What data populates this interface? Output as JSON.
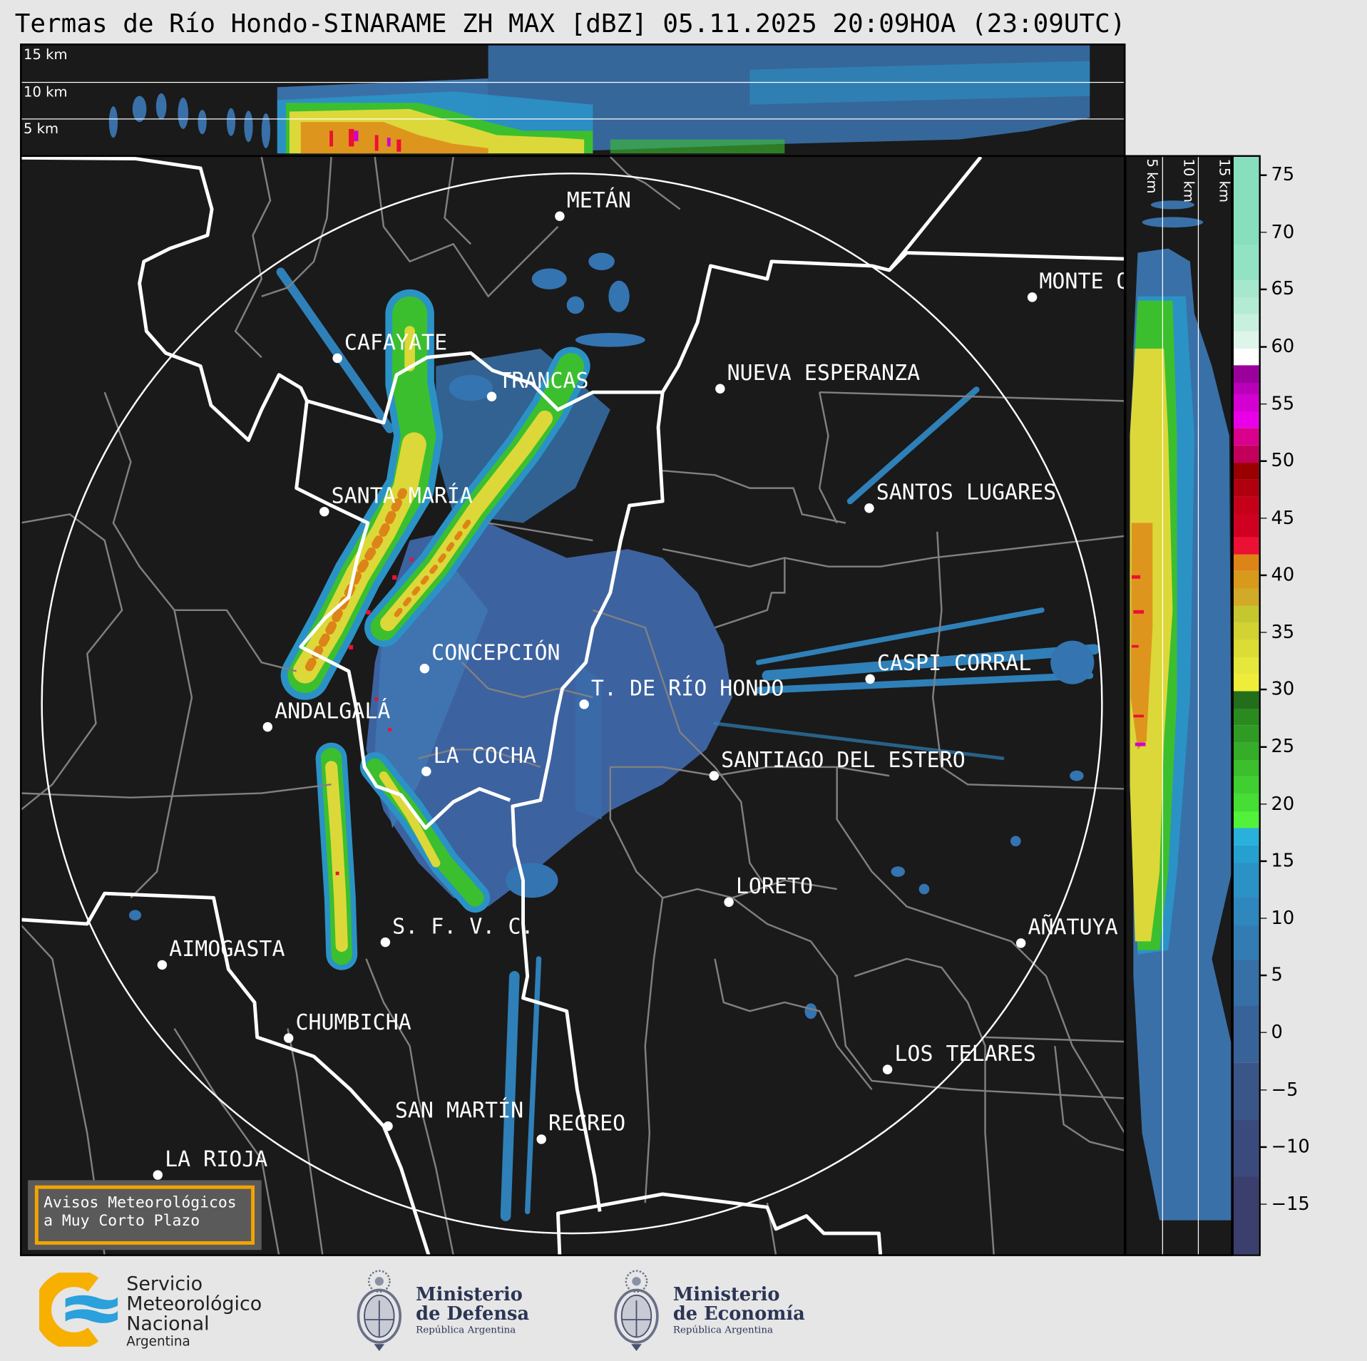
{
  "title": "Termas de Río Hondo-SINARAME ZH MAX [dBZ] 05.11.2025 20:09HOA (23:09UTC)",
  "top_profile": {
    "height_labels": [
      "15 km",
      "10 km",
      "5 km"
    ]
  },
  "side_profile": {
    "height_labels": [
      "5 km",
      "10 km",
      "15 km"
    ]
  },
  "cities": [
    {
      "name": "METÁN"
    },
    {
      "name": "MONTE Q"
    },
    {
      "name": "CAFAYATE"
    },
    {
      "name": "TRANCAS"
    },
    {
      "name": "NUEVA ESPERANZA"
    },
    {
      "name": "SANTA MARÍA"
    },
    {
      "name": "SANTOS LUGARES"
    },
    {
      "name": "CONCEPCIÓN"
    },
    {
      "name": "CASPI CORRAL"
    },
    {
      "name": "T. DE RÍO HONDO"
    },
    {
      "name": "ANDALGALÁ"
    },
    {
      "name": "LA COCHA"
    },
    {
      "name": "SANTIAGO DEL ESTERO"
    },
    {
      "name": "LORETO"
    },
    {
      "name": "S. F. V. C."
    },
    {
      "name": "AÑATUYA"
    },
    {
      "name": "AIMOGASTA"
    },
    {
      "name": "CHUMBICHA"
    },
    {
      "name": "LOS TELARES"
    },
    {
      "name": "SAN MARTÍN"
    },
    {
      "name": "RECREO"
    },
    {
      "name": "LA RIOJA"
    }
  ],
  "avisos_box": {
    "line1": "Avisos Meteorológicos",
    "line2": "a Muy Corto Plazo",
    "border_color": "#f5a300"
  },
  "colorbar": {
    "unit": "dBZ",
    "range": [
      -19.6,
      76.7
    ],
    "ticks": [
      "75",
      "70",
      "65",
      "60",
      "55",
      "50",
      "45",
      "40",
      "35",
      "30",
      "25",
      "20",
      "15",
      "10",
      "5",
      "0",
      "−5",
      "−10",
      "−15"
    ],
    "tick_values": [
      75,
      70,
      65,
      60,
      55,
      50,
      45,
      40,
      35,
      30,
      25,
      20,
      15,
      10,
      5,
      0,
      -5,
      -10,
      -15
    ],
    "bands": [
      [
        -19.6,
        "#3b3f6e"
      ],
      [
        -12.5,
        "#3b4a7c"
      ],
      [
        -7.5,
        "#3a5588"
      ],
      [
        -2.5,
        "#386398"
      ],
      [
        2.5,
        "#3670a6"
      ],
      [
        6.5,
        "#337cb3"
      ],
      [
        9.5,
        "#2f87bd"
      ],
      [
        12,
        "#2b92c6"
      ],
      [
        15,
        "#26a0d1"
      ],
      [
        16.5,
        "#29b0dc"
      ],
      [
        18,
        "#52f23a"
      ],
      [
        19.5,
        "#46dd34"
      ],
      [
        21,
        "#40cf30"
      ],
      [
        22.5,
        "#3bbf2d"
      ],
      [
        24,
        "#35ad28"
      ],
      [
        25.5,
        "#2f9b24"
      ],
      [
        27,
        "#2a8a20"
      ],
      [
        28.5,
        "#236e1b"
      ],
      [
        30,
        "#efed3a"
      ],
      [
        31.5,
        "#e5e73a"
      ],
      [
        33,
        "#dcdc36"
      ],
      [
        34.5,
        "#d2d232"
      ],
      [
        36,
        "#c5c72f"
      ],
      [
        37.5,
        "#d1ab28"
      ],
      [
        39,
        "#d89a1a"
      ],
      [
        40.5,
        "#dd8418"
      ],
      [
        42,
        "#ec1034"
      ],
      [
        43.5,
        "#cf0022"
      ],
      [
        45.5,
        "#c60018"
      ],
      [
        47,
        "#b00010"
      ],
      [
        48.5,
        "#9a0000"
      ],
      [
        50,
        "#c2005c"
      ],
      [
        51.5,
        "#d8008c"
      ],
      [
        53,
        "#ea00e8"
      ],
      [
        54.5,
        "#d300d2"
      ],
      [
        56,
        "#b800b8"
      ],
      [
        57,
        "#9a009c"
      ],
      [
        58.5,
        "#ffffff"
      ],
      [
        60,
        "#def5ea"
      ],
      [
        61.5,
        "#c7f0de"
      ],
      [
        63,
        "#b4ebd3"
      ],
      [
        64.5,
        "#a6e7cd"
      ],
      [
        66,
        "#92e2c4"
      ],
      [
        69,
        "#88dfbe"
      ]
    ]
  },
  "logos": {
    "smn": {
      "line1": "Servicio",
      "line2": "Meteorológico",
      "line3": "Nacional",
      "line4": "Argentina"
    },
    "defensa": {
      "line1": "Ministerio",
      "line2": "de Defensa",
      "line3": "República Argentina"
    },
    "economia": {
      "line1": "Ministerio",
      "line2": "de Economía",
      "line3": "República Argentina"
    }
  },
  "colors": {
    "background": "#e6e6e6",
    "map_bg": "#1a1a1a",
    "province_border": "#ffffff",
    "department_border": "#808080",
    "text_navy": "#2b3555"
  }
}
